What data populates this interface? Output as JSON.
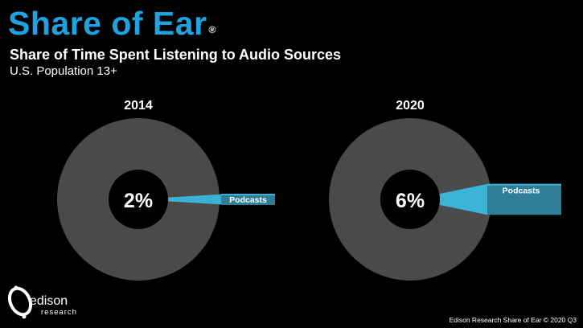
{
  "header": {
    "brand_title": "Share of Ear",
    "brand_mark": "®",
    "subtitle": "Share of Time Spent Listening to Audio Sources",
    "population": "U.S. Population 13+"
  },
  "colors": {
    "brand_blue": "#1ea3e0",
    "donut_gray": "#4a4a4a",
    "podcast_slice": "#3bb3d6",
    "callout_fill": "#2f7e99"
  },
  "chart_data": [
    {
      "type": "pie",
      "title": "2014",
      "center_label": "2%",
      "slices": [
        {
          "label": "Podcasts",
          "value": 2
        },
        {
          "label": "",
          "value": 98
        }
      ]
    },
    {
      "type": "pie",
      "title": "2020",
      "center_label": "6%",
      "slices": [
        {
          "label": "Podcasts",
          "value": 6
        },
        {
          "label": "",
          "value": 94
        }
      ]
    }
  ],
  "logo": {
    "name": "edison",
    "tagline": "research"
  },
  "footer": {
    "credit": "Edison Research Share of Ear © 2020 Q3"
  }
}
